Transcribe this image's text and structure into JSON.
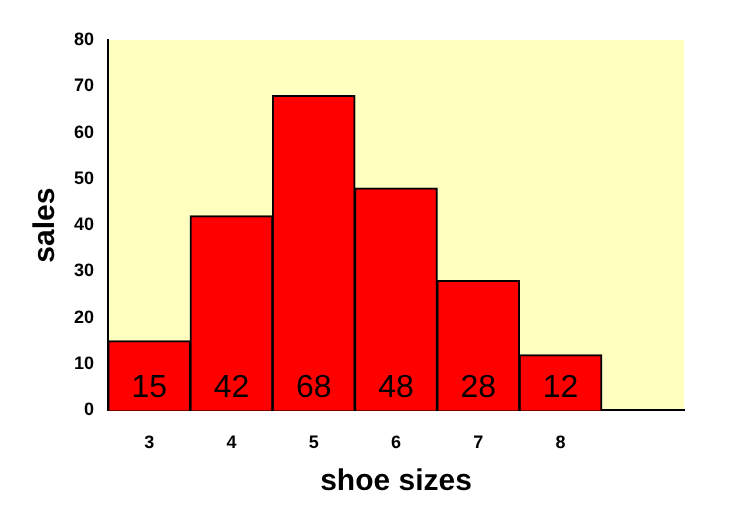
{
  "chart_data": {
    "type": "bar",
    "xlabel": "shoe sizes",
    "ylabel": "sales",
    "categories": [
      "3",
      "4",
      "5",
      "6",
      "7",
      "8",
      null
    ],
    "values": [
      15,
      42,
      68,
      48,
      28,
      12,
      null
    ],
    "color": "#ff0000",
    "ylim": [
      0,
      80
    ],
    "yticks": [
      0,
      10,
      20,
      30,
      40,
      50,
      60,
      70,
      80
    ],
    "data_labels": true,
    "grid": false,
    "legend": false
  }
}
